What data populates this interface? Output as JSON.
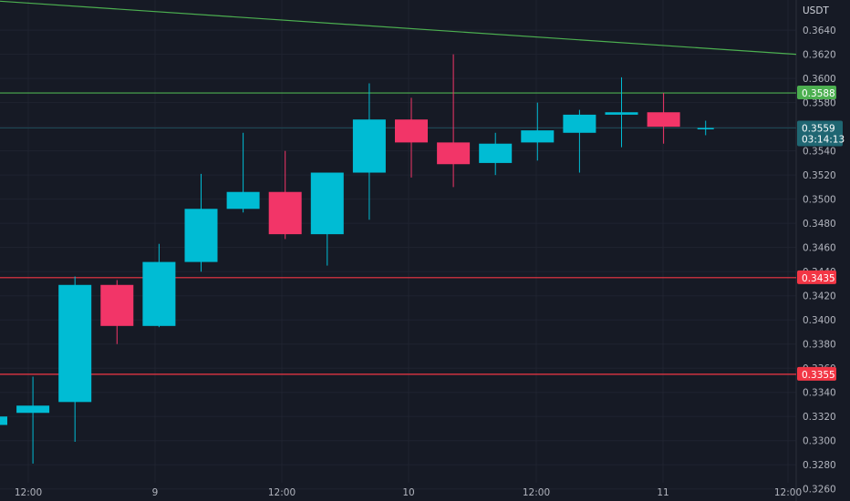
{
  "chart_data": {
    "type": "candlestick",
    "unit": "USDT",
    "colors": {
      "up": "#00bcd4",
      "down": "#f23568",
      "resistance": "#4caf50",
      "support": "#f23645",
      "trendline": "#4caf50",
      "background": "#161a25",
      "grid": "#1f2330"
    },
    "y_range": [
      0.325,
      0.3665
    ],
    "y_ticks": [
      "0.3640",
      "0.3620",
      "0.3600",
      "0.3580",
      "0.3560",
      "0.3540",
      "0.3520",
      "0.3500",
      "0.3480",
      "0.3460",
      "0.3440",
      "0.3420",
      "0.3400",
      "0.3380",
      "0.3360",
      "0.3340",
      "0.3320",
      "0.3300",
      "0.3280",
      "0.3260"
    ],
    "x_labels": [
      "12:00",
      "9",
      "12:00",
      "10",
      "12:00",
      "11",
      "12:00"
    ],
    "candles": [
      {
        "o": 0.3313,
        "h": 0.3324,
        "l": 0.3304,
        "c": 0.332
      },
      {
        "o": 0.3323,
        "h": 0.3353,
        "l": 0.3281,
        "c": 0.3329
      },
      {
        "o": 0.3332,
        "h": 0.3436,
        "l": 0.3299,
        "c": 0.3429
      },
      {
        "o": 0.3429,
        "h": 0.3433,
        "l": 0.338,
        "c": 0.3395
      },
      {
        "o": 0.3395,
        "h": 0.3463,
        "l": 0.3394,
        "c": 0.3448
      },
      {
        "o": 0.3448,
        "h": 0.3521,
        "l": 0.344,
        "c": 0.3492
      },
      {
        "o": 0.3492,
        "h": 0.3555,
        "l": 0.3489,
        "c": 0.3506
      },
      {
        "o": 0.3506,
        "h": 0.354,
        "l": 0.3467,
        "c": 0.3471
      },
      {
        "o": 0.3471,
        "h": 0.3522,
        "l": 0.3445,
        "c": 0.3522
      },
      {
        "o": 0.3522,
        "h": 0.3596,
        "l": 0.3483,
        "c": 0.3566
      },
      {
        "o": 0.3566,
        "h": 0.3584,
        "l": 0.3518,
        "c": 0.3547
      },
      {
        "o": 0.3547,
        "h": 0.362,
        "l": 0.351,
        "c": 0.3529
      },
      {
        "o": 0.353,
        "h": 0.3555,
        "l": 0.352,
        "c": 0.3546
      },
      {
        "o": 0.3547,
        "h": 0.358,
        "l": 0.3532,
        "c": 0.3557
      },
      {
        "o": 0.3555,
        "h": 0.3574,
        "l": 0.3522,
        "c": 0.357
      },
      {
        "o": 0.357,
        "h": 0.3601,
        "l": 0.3543,
        "c": 0.3572
      },
      {
        "o": 0.3572,
        "h": 0.3588,
        "l": 0.3546,
        "c": 0.356
      },
      {
        "o": 0.3559,
        "h": 0.3565,
        "l": 0.3553,
        "c": 0.3559
      }
    ],
    "trendline": {
      "start": 0.3664,
      "end": 0.362
    },
    "horizontal_levels": [
      {
        "name": "resistance",
        "value": 0.3588,
        "label": "0.3588"
      },
      {
        "name": "support-upper",
        "value": 0.3435,
        "label": "0.3435"
      },
      {
        "name": "support-lower",
        "value": 0.3355,
        "label": "0.3355"
      }
    ],
    "last_price": {
      "value": 0.3559,
      "label": "0.3559",
      "countdown": "03:14:13"
    }
  }
}
